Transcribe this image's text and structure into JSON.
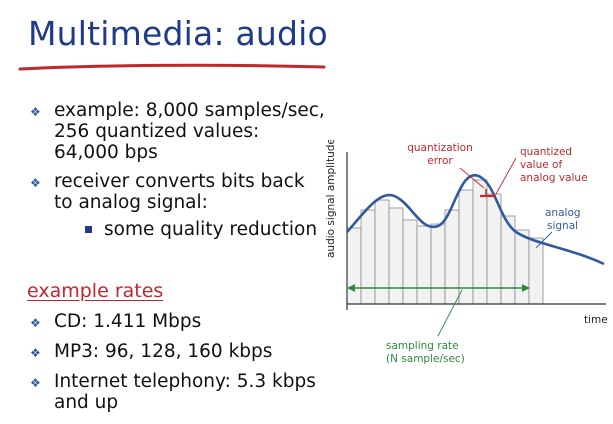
{
  "title": "Multimedia: audio",
  "bullets": [
    {
      "text": "example: 8,000 samples/sec, 256 quantized values:  64,000 bps"
    },
    {
      "text": "receiver converts bits back to analog signal:"
    }
  ],
  "sub_bullet": "some quality reduction",
  "section_heading": "example rates",
  "rates": [
    "CD: 1.411 Mbps",
    "MP3: 96, 128, 160 kbps",
    "Internet telephony: 5.3 kbps and up"
  ],
  "figure": {
    "y_axis_label": "audio signal amplitude",
    "x_axis_label": "time",
    "quantization_error_label": [
      "quantization",
      "error"
    ],
    "quantized_value_label": [
      "quantized",
      "value of",
      "analog value"
    ],
    "analog_signal_label": [
      "analog",
      "signal"
    ],
    "sampling_rate_label": [
      "sampling rate",
      "(N sample/sec)"
    ]
  },
  "colors": {
    "title": "#1f3a8a",
    "title_underline": "#c0282e",
    "section_heading": "#c0282e",
    "curve": "#2f5aa0",
    "annotation_red": "#c0282e",
    "annotation_green": "#2e8b3e",
    "bars_fill": "#f2f2f2"
  },
  "icons": {
    "bullet": "diamond-bullet-icon",
    "sub_bullet": "square-bullet-icon"
  }
}
